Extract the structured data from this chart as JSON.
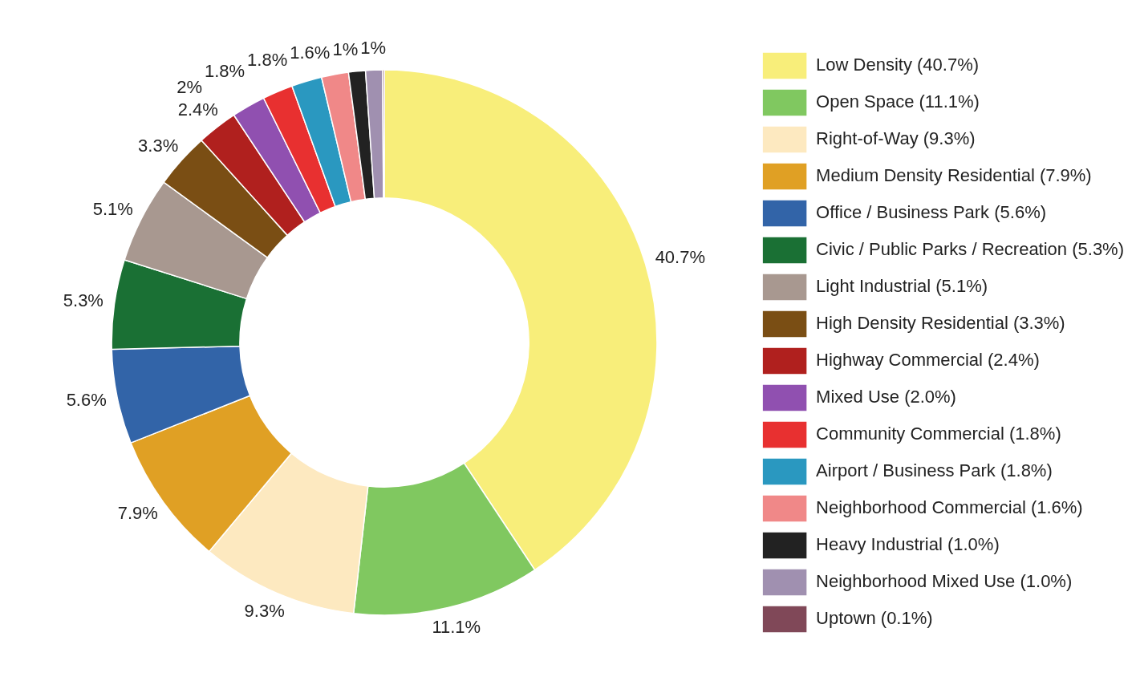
{
  "chart_data": {
    "type": "donut",
    "categories": [
      "Low Density (40.7%)",
      "Open Space (11.1%)",
      "Right-of-Way (9.3%)",
      "Medium Density Residential (7.9%)",
      "Office / Business Park (5.6%)",
      "Civic / Public Parks / Recreation (5.3%)",
      "Light Industrial (5.1%)",
      "High Density Residential (3.3%)",
      "Highway Commercial (2.4%)",
      "Mixed Use (2.0%)",
      "Community Commercial (1.8%)",
      "Airport / Business Park (1.8%)",
      "Neighborhood Commercial (1.6%)",
      "Heavy Industrial (1.0%)",
      "Neighborhood Mixed Use (1.0%)",
      "Uptown (0.1%)"
    ],
    "values": [
      40.7,
      11.1,
      9.3,
      7.9,
      5.6,
      5.3,
      5.1,
      3.3,
      2.4,
      2.0,
      1.8,
      1.8,
      1.6,
      1.0,
      1.0,
      0.1
    ],
    "colors": [
      "#f8ee7a",
      "#80c860",
      "#fde9c0",
      "#e0a024",
      "#3264a8",
      "#1a7034",
      "#a89890",
      "#7a4e14",
      "#b0201e",
      "#9050b0",
      "#e83030",
      "#2a98c0",
      "#f08888",
      "#222222",
      "#a090b0",
      "#804858"
    ],
    "value_labels": [
      "40.7%",
      "11.1%",
      "9.3%",
      "7.9%",
      "5.6%",
      "5.3%",
      "5.1%",
      "3.3%",
      "2.4%",
      "2%",
      "1.8%",
      "1.8%",
      "1.6%",
      "1%",
      "1%",
      null
    ],
    "legend": "right"
  }
}
